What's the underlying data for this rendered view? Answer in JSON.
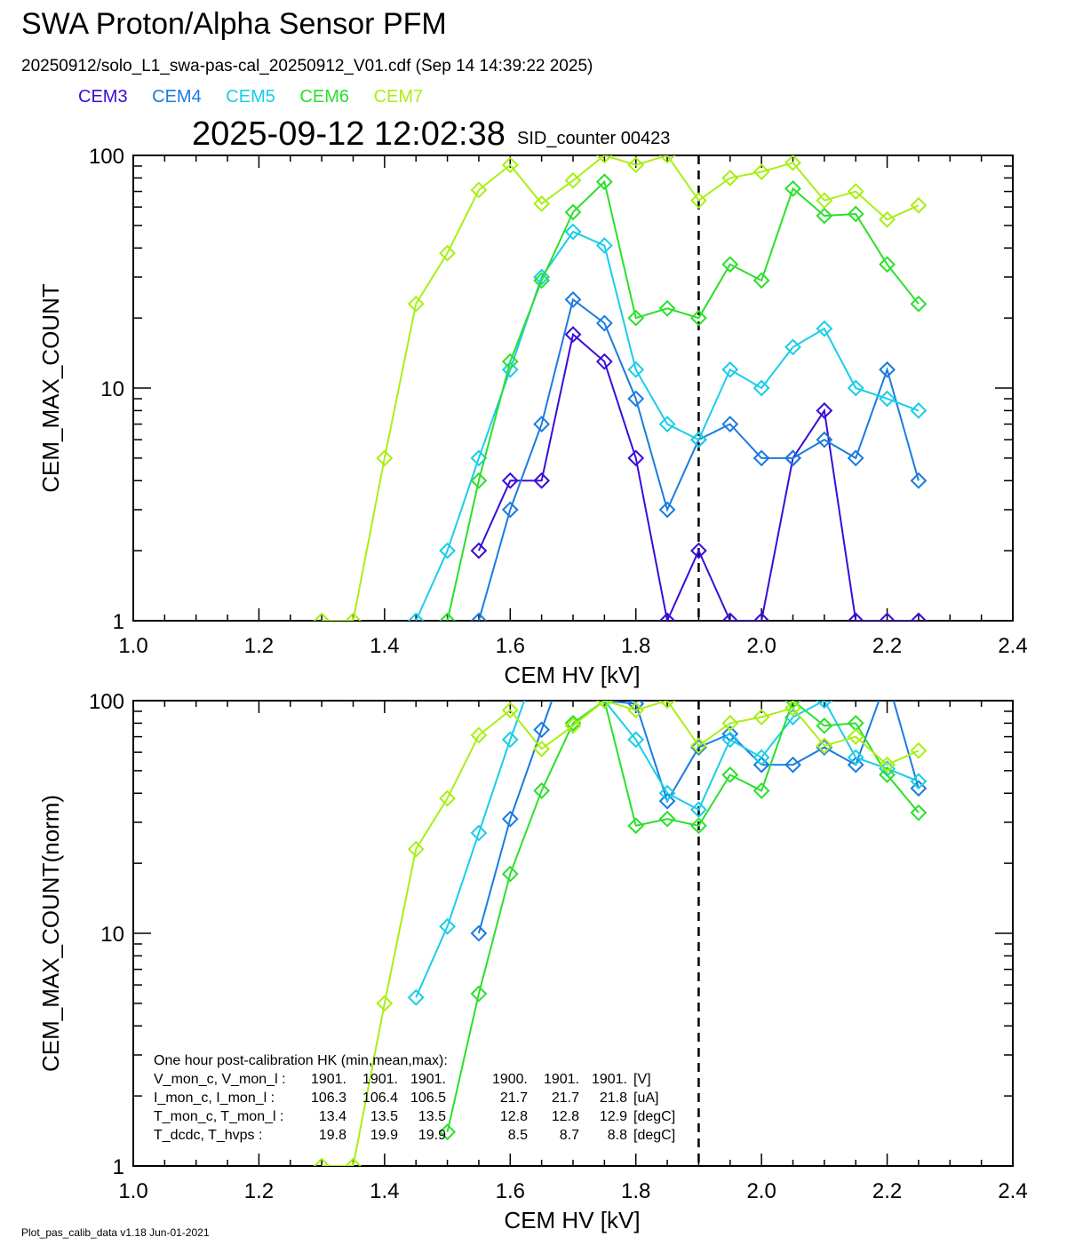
{
  "title": "SWA Proton/Alpha Sensor PFM",
  "subtitle": "20250912/solo_L1_swa-pas-cal_20250912_V01.cdf  (Sep 14 14:39:22 2025)",
  "timestamp": "2025-09-12 12:02:38",
  "sid_counter": "SID_counter 00423",
  "footer": "Plot_pas_calib_data v1.18 Jun-01-2021",
  "legend": [
    {
      "name": "CEM3",
      "color": "#3b0bd9"
    },
    {
      "name": "CEM4",
      "color": "#1a7be0"
    },
    {
      "name": "CEM5",
      "color": "#19cde8"
    },
    {
      "name": "CEM6",
      "color": "#2ae02a"
    },
    {
      "name": "CEM7",
      "color": "#a8ef14"
    }
  ],
  "hk_box": {
    "header": "One hour post-calibration HK (min,mean,max):",
    "rows": [
      {
        "label": "V_mon_c, V_mon_l :",
        "a": [
          "1901.",
          "1901.",
          "1901."
        ],
        "b": [
          "1900.",
          "1901.",
          "1901."
        ],
        "unit": "[V]"
      },
      {
        "label": "I_mon_c,  I_mon_l :",
        "a": [
          "106.3",
          "106.4",
          "106.5"
        ],
        "b": [
          "21.7",
          "21.7",
          "21.8"
        ],
        "unit": "[uA]"
      },
      {
        "label": "T_mon_c, T_mon_l :",
        "a": [
          "13.4",
          "13.5",
          "13.5"
        ],
        "b": [
          "12.8",
          "12.8",
          "12.9"
        ],
        "unit": "[degC]"
      },
      {
        "label": "T_dcdc,    T_hvps :",
        "a": [
          "19.8",
          "19.9",
          "19.9"
        ],
        "b": [
          "8.5",
          "8.7",
          "8.8"
        ],
        "unit": "[degC]"
      }
    ]
  },
  "chart_data": [
    {
      "type": "line",
      "xlabel": "CEM HV [kV]",
      "ylabel": "CEM_MAX_COUNT",
      "xlim": [
        1.0,
        2.4
      ],
      "ylim": [
        1,
        100
      ],
      "yscale": "log",
      "xticks": [
        "1.0",
        "1.2",
        "1.4",
        "1.6",
        "1.8",
        "2.0",
        "2.2",
        "2.4"
      ],
      "yticks": [
        "1",
        "10",
        "100"
      ],
      "vline_x": 1.9,
      "series": [
        {
          "name": "CEM3",
          "x": [
            1.55,
            1.6,
            1.65,
            1.7,
            1.75,
            1.8,
            1.85,
            1.9,
            1.95,
            2.0,
            2.05,
            2.1,
            2.15,
            2.2,
            2.25
          ],
          "values": [
            2,
            4,
            4,
            17,
            13,
            5,
            1,
            2,
            1,
            1,
            5,
            8,
            1,
            1,
            1
          ]
        },
        {
          "name": "CEM4",
          "x": [
            1.55,
            1.6,
            1.65,
            1.7,
            1.75,
            1.8,
            1.85,
            1.9,
            1.95,
            2.0,
            2.05,
            2.1,
            2.15,
            2.2,
            2.25
          ],
          "values": [
            1,
            3,
            7,
            24,
            19,
            9,
            3,
            6,
            7,
            5,
            5,
            6,
            5,
            12,
            4
          ]
        },
        {
          "name": "CEM5",
          "x": [
            1.45,
            1.5,
            1.55,
            1.6,
            1.65,
            1.7,
            1.75,
            1.8,
            1.85,
            1.9,
            1.95,
            2.0,
            2.05,
            2.1,
            2.15,
            2.2,
            2.25
          ],
          "values": [
            1,
            2,
            5,
            12,
            30,
            47,
            41,
            12,
            7,
            6,
            12,
            10,
            15,
            18,
            10,
            9,
            8
          ]
        },
        {
          "name": "CEM6",
          "x": [
            1.5,
            1.55,
            1.6,
            1.65,
            1.7,
            1.75,
            1.8,
            1.85,
            1.9,
            1.95,
            2.0,
            2.05,
            2.1,
            2.15,
            2.2,
            2.25
          ],
          "values": [
            1,
            4,
            13,
            29,
            57,
            77,
            20,
            22,
            20,
            34,
            29,
            72,
            55,
            56,
            34,
            23
          ]
        },
        {
          "name": "CEM7",
          "x": [
            1.3,
            1.35,
            1.4,
            1.45,
            1.5,
            1.55,
            1.6,
            1.65,
            1.7,
            1.75,
            1.8,
            1.85,
            1.9,
            1.95,
            2.0,
            2.05,
            2.1,
            2.15,
            2.2,
            2.25
          ],
          "values": [
            1,
            1,
            5,
            23,
            38,
            71,
            91,
            62,
            78,
            100,
            91,
            100,
            64,
            80,
            85,
            93,
            64,
            70,
            53,
            61
          ]
        }
      ]
    },
    {
      "type": "line",
      "xlabel": "CEM HV [kV]",
      "ylabel": "CEM_MAX_COUNT(norm)",
      "xlim": [
        1.0,
        2.4
      ],
      "ylim": [
        1,
        100
      ],
      "yscale": "log",
      "xticks": [
        "1.0",
        "1.2",
        "1.4",
        "1.6",
        "1.8",
        "2.0",
        "2.2",
        "2.4"
      ],
      "yticks": [
        "1",
        "10",
        "100"
      ],
      "vline_x": 1.9,
      "series": [
        {
          "name": "CEM4",
          "x": [
            1.55,
            1.6,
            1.65,
            1.7,
            1.75,
            1.8,
            1.85,
            1.9,
            1.95,
            2.0,
            2.05,
            2.1,
            2.15,
            2.2,
            2.25
          ],
          "values": [
            10,
            31,
            75,
            180,
            100,
            97,
            37,
            63,
            72,
            53,
            53,
            63,
            53,
            125,
            42
          ]
        },
        {
          "name": "CEM5",
          "x": [
            1.45,
            1.5,
            1.55,
            1.6,
            1.65,
            1.7,
            1.75,
            1.8,
            1.85,
            1.9,
            1.95,
            2.0,
            2.05,
            2.1,
            2.15,
            2.2,
            2.25
          ],
          "values": [
            5.3,
            10.7,
            27,
            68,
            160,
            114,
            100,
            68,
            40,
            34,
            68,
            57,
            85,
            100,
            57,
            51,
            45
          ]
        },
        {
          "name": "CEM6",
          "x": [
            1.5,
            1.55,
            1.6,
            1.65,
            1.7,
            1.75,
            1.8,
            1.85,
            1.9,
            1.95,
            2.0,
            2.05,
            2.1,
            2.15,
            2.2,
            2.25
          ],
          "values": [
            1.4,
            5.5,
            18,
            41,
            80,
            100,
            29,
            31,
            29,
            48,
            41,
            100,
            78,
            80,
            48,
            33
          ]
        },
        {
          "name": "CEM7",
          "x": [
            1.3,
            1.35,
            1.4,
            1.45,
            1.5,
            1.55,
            1.6,
            1.65,
            1.7,
            1.75,
            1.8,
            1.85,
            1.9,
            1.95,
            2.0,
            2.05,
            2.1,
            2.15,
            2.2,
            2.25
          ],
          "values": [
            1,
            1,
            5,
            23,
            38,
            71,
            91,
            62,
            78,
            100,
            91,
            100,
            64,
            80,
            85,
            93,
            64,
            70,
            53,
            61
          ]
        }
      ]
    }
  ]
}
